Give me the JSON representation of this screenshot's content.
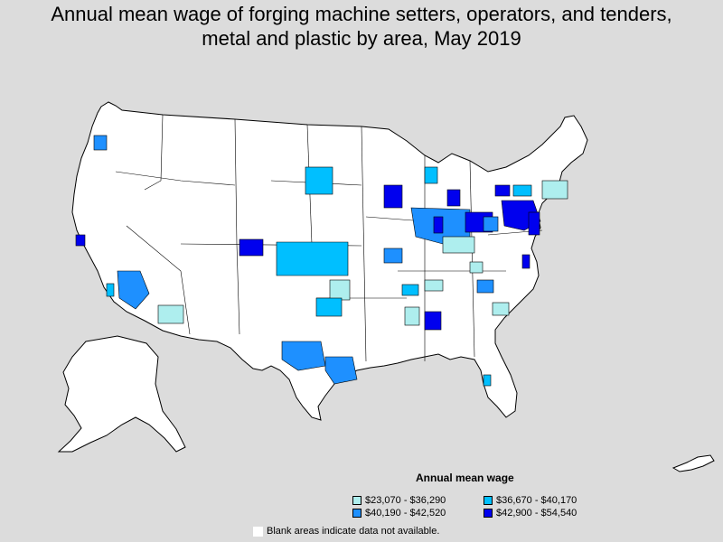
{
  "title": {
    "line1": "Annual mean wage of forging machine setters, operators, and tenders,",
    "line2": "metal and plastic by area, May 2019"
  },
  "legend": {
    "title": "Annual mean wage",
    "items": [
      {
        "label": "$23,070 - $36,290",
        "color": "#aeeeee"
      },
      {
        "label": "$36,670 - $40,170",
        "color": "#00bfff"
      },
      {
        "label": "$40,190 - $42,520",
        "color": "#1e90ff"
      },
      {
        "label": "$42,900 - $54,540",
        "color": "#0000ee"
      }
    ]
  },
  "note": "Blank areas indicate data not available.",
  "colors": {
    "background": "#dcdcdc",
    "land": "#ffffff",
    "border": "#000000"
  }
}
